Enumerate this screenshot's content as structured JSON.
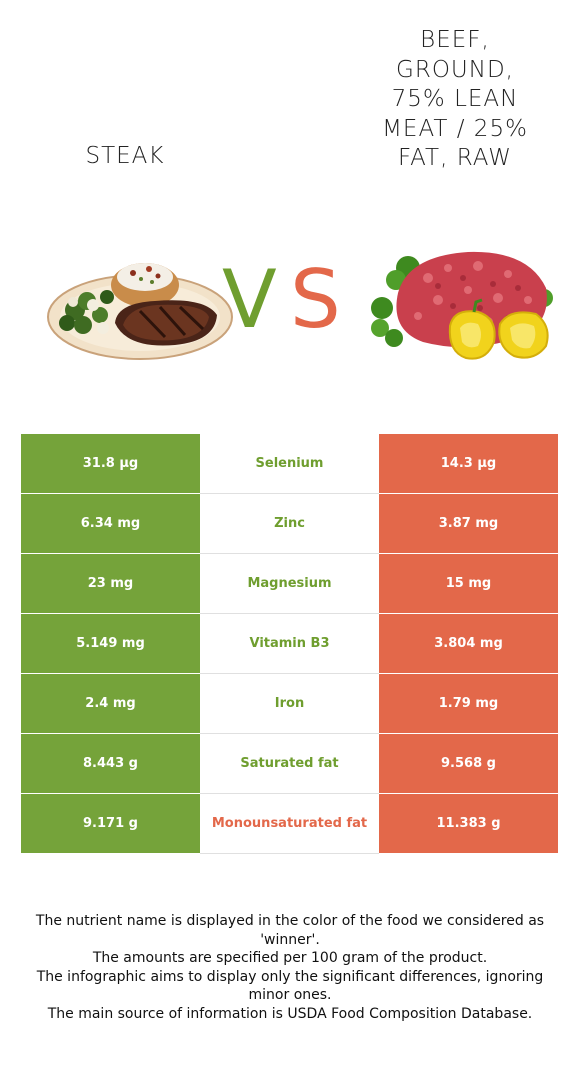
{
  "header": {
    "left_title": "Steak",
    "right_title_lines": [
      "Beef,",
      "ground,",
      "75% lean",
      "meat / 25%",
      "fat, raw"
    ]
  },
  "vs": {
    "v": "V",
    "s": "S"
  },
  "colors": {
    "left_winner": "#75a33a",
    "right_winner": "#e3684a"
  },
  "rows": [
    {
      "left": "31.8 µg",
      "nutrient": "Selenium",
      "right": "14.3 µg",
      "winner": "left"
    },
    {
      "left": "6.34 mg",
      "nutrient": "Zinc",
      "right": "3.87 mg",
      "winner": "left"
    },
    {
      "left": "23 mg",
      "nutrient": "Magnesium",
      "right": "15 mg",
      "winner": "left"
    },
    {
      "left": "5.149 mg",
      "nutrient": "Vitamin B3",
      "right": "3.804 mg",
      "winner": "left"
    },
    {
      "left": "2.4 mg",
      "nutrient": "Iron",
      "right": "1.79 mg",
      "winner": "left"
    },
    {
      "left": "8.443 g",
      "nutrient": "Saturated fat",
      "right": "9.568 g",
      "winner": "left"
    },
    {
      "left": "9.171 g",
      "nutrient": "Monounsaturated fat",
      "right": "11.383 g",
      "winner": "right"
    }
  ],
  "notes": [
    "The nutrient name is displayed in the color of the food we considered as 'winner'.",
    "The amounts are specified per 100 gram of the product.",
    "The infographic aims to display only the significant differences, ignoring minor ones.",
    "The main source of information is USDA Food Composition Database."
  ]
}
